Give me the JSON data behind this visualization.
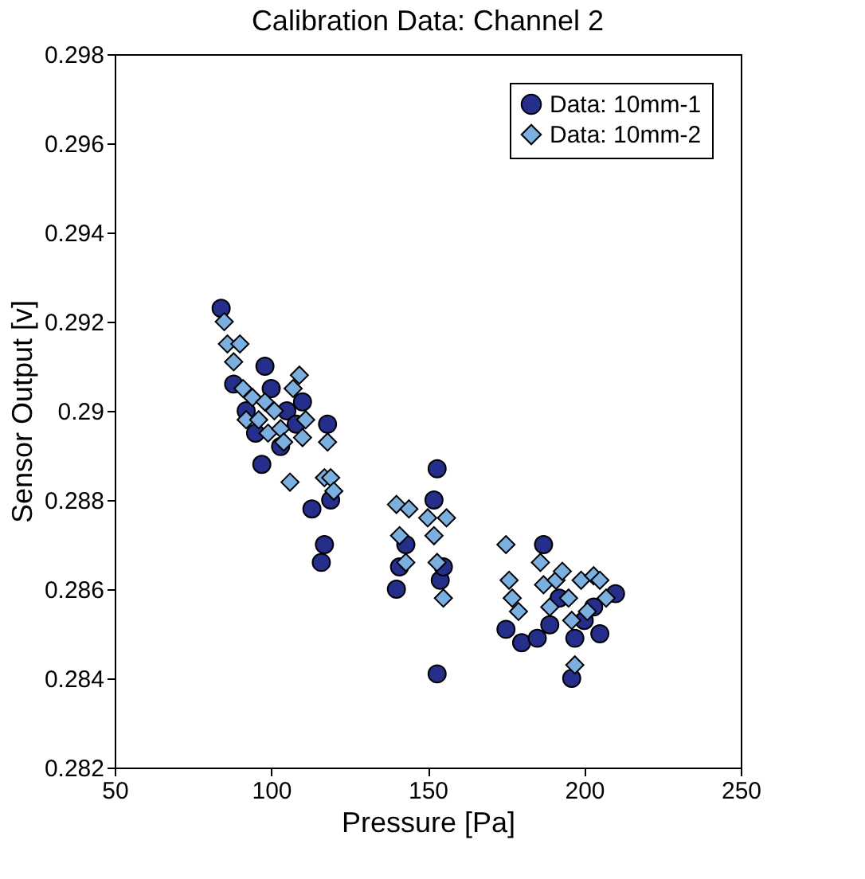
{
  "chart_data": {
    "type": "scatter",
    "title": "Calibration Data: Channel 2",
    "xlabel": "Pressure [Pa]",
    "ylabel": "Sensor Output [v]",
    "xlim": [
      50,
      250
    ],
    "xticks": [
      50,
      100,
      150,
      200,
      250
    ],
    "ylim": [
      0.282,
      0.298
    ],
    "yticks": [
      0.282,
      0.284,
      0.286,
      0.288,
      0.29,
      0.292,
      0.294,
      0.296,
      0.298
    ],
    "grid": false,
    "legend": "top right",
    "series": [
      {
        "name": "Data: 10mm-1",
        "color": "#262e8c",
        "marker": "circle",
        "x": [
          84,
          88,
          92,
          95,
          97,
          98,
          100,
          103,
          105,
          108,
          110,
          113,
          116,
          118,
          119,
          117,
          140,
          141,
          143,
          150,
          152,
          153,
          154,
          153,
          155,
          175,
          177,
          180,
          185,
          187,
          189,
          192,
          196,
          197,
          200,
          203,
          205,
          208,
          210
        ],
        "values": [
          0.2923,
          0.2906,
          0.29,
          0.2895,
          0.2888,
          0.291,
          0.2905,
          0.2892,
          0.29,
          0.2897,
          0.2902,
          0.2878,
          0.2866,
          0.2897,
          0.288,
          0.287,
          0.286,
          0.2865,
          0.287,
          null,
          0.288,
          0.2887,
          0.2862,
          0.2841,
          0.2865,
          0.2851,
          null,
          0.2848,
          0.2849,
          0.287,
          0.2852,
          0.2858,
          0.284,
          0.2849,
          0.2853,
          0.2856,
          0.285,
          null,
          0.2859
        ]
      },
      {
        "name": "Data: 10mm-2",
        "color": "#7bafe0",
        "marker": "diamond",
        "x": [
          85,
          86,
          88,
          90,
          91,
          92,
          94,
          96,
          98,
          99,
          101,
          103,
          104,
          106,
          107,
          109,
          110,
          111,
          117,
          118,
          119,
          120,
          140,
          141,
          143,
          144,
          150,
          152,
          153,
          155,
          156,
          175,
          176,
          177,
          179,
          186,
          187,
          189,
          191,
          193,
          195,
          196,
          197,
          199,
          201,
          203,
          205,
          207
        ],
        "values": [
          0.292,
          0.2915,
          0.2911,
          0.2915,
          0.2905,
          0.2898,
          0.2903,
          0.2898,
          0.2902,
          0.2895,
          0.29,
          0.2896,
          0.2893,
          0.2884,
          0.2905,
          0.2908,
          0.2894,
          0.2898,
          0.2885,
          0.2893,
          0.2885,
          0.2882,
          0.2879,
          0.2872,
          0.2866,
          0.2878,
          0.2876,
          0.2872,
          0.2866,
          0.2858,
          0.2876,
          0.287,
          0.2862,
          0.2858,
          0.2855,
          0.2866,
          0.2861,
          0.2856,
          0.2862,
          0.2864,
          0.2858,
          0.2853,
          0.2843,
          0.2862,
          0.2855,
          0.2863,
          0.2862,
          0.2858
        ]
      }
    ]
  }
}
